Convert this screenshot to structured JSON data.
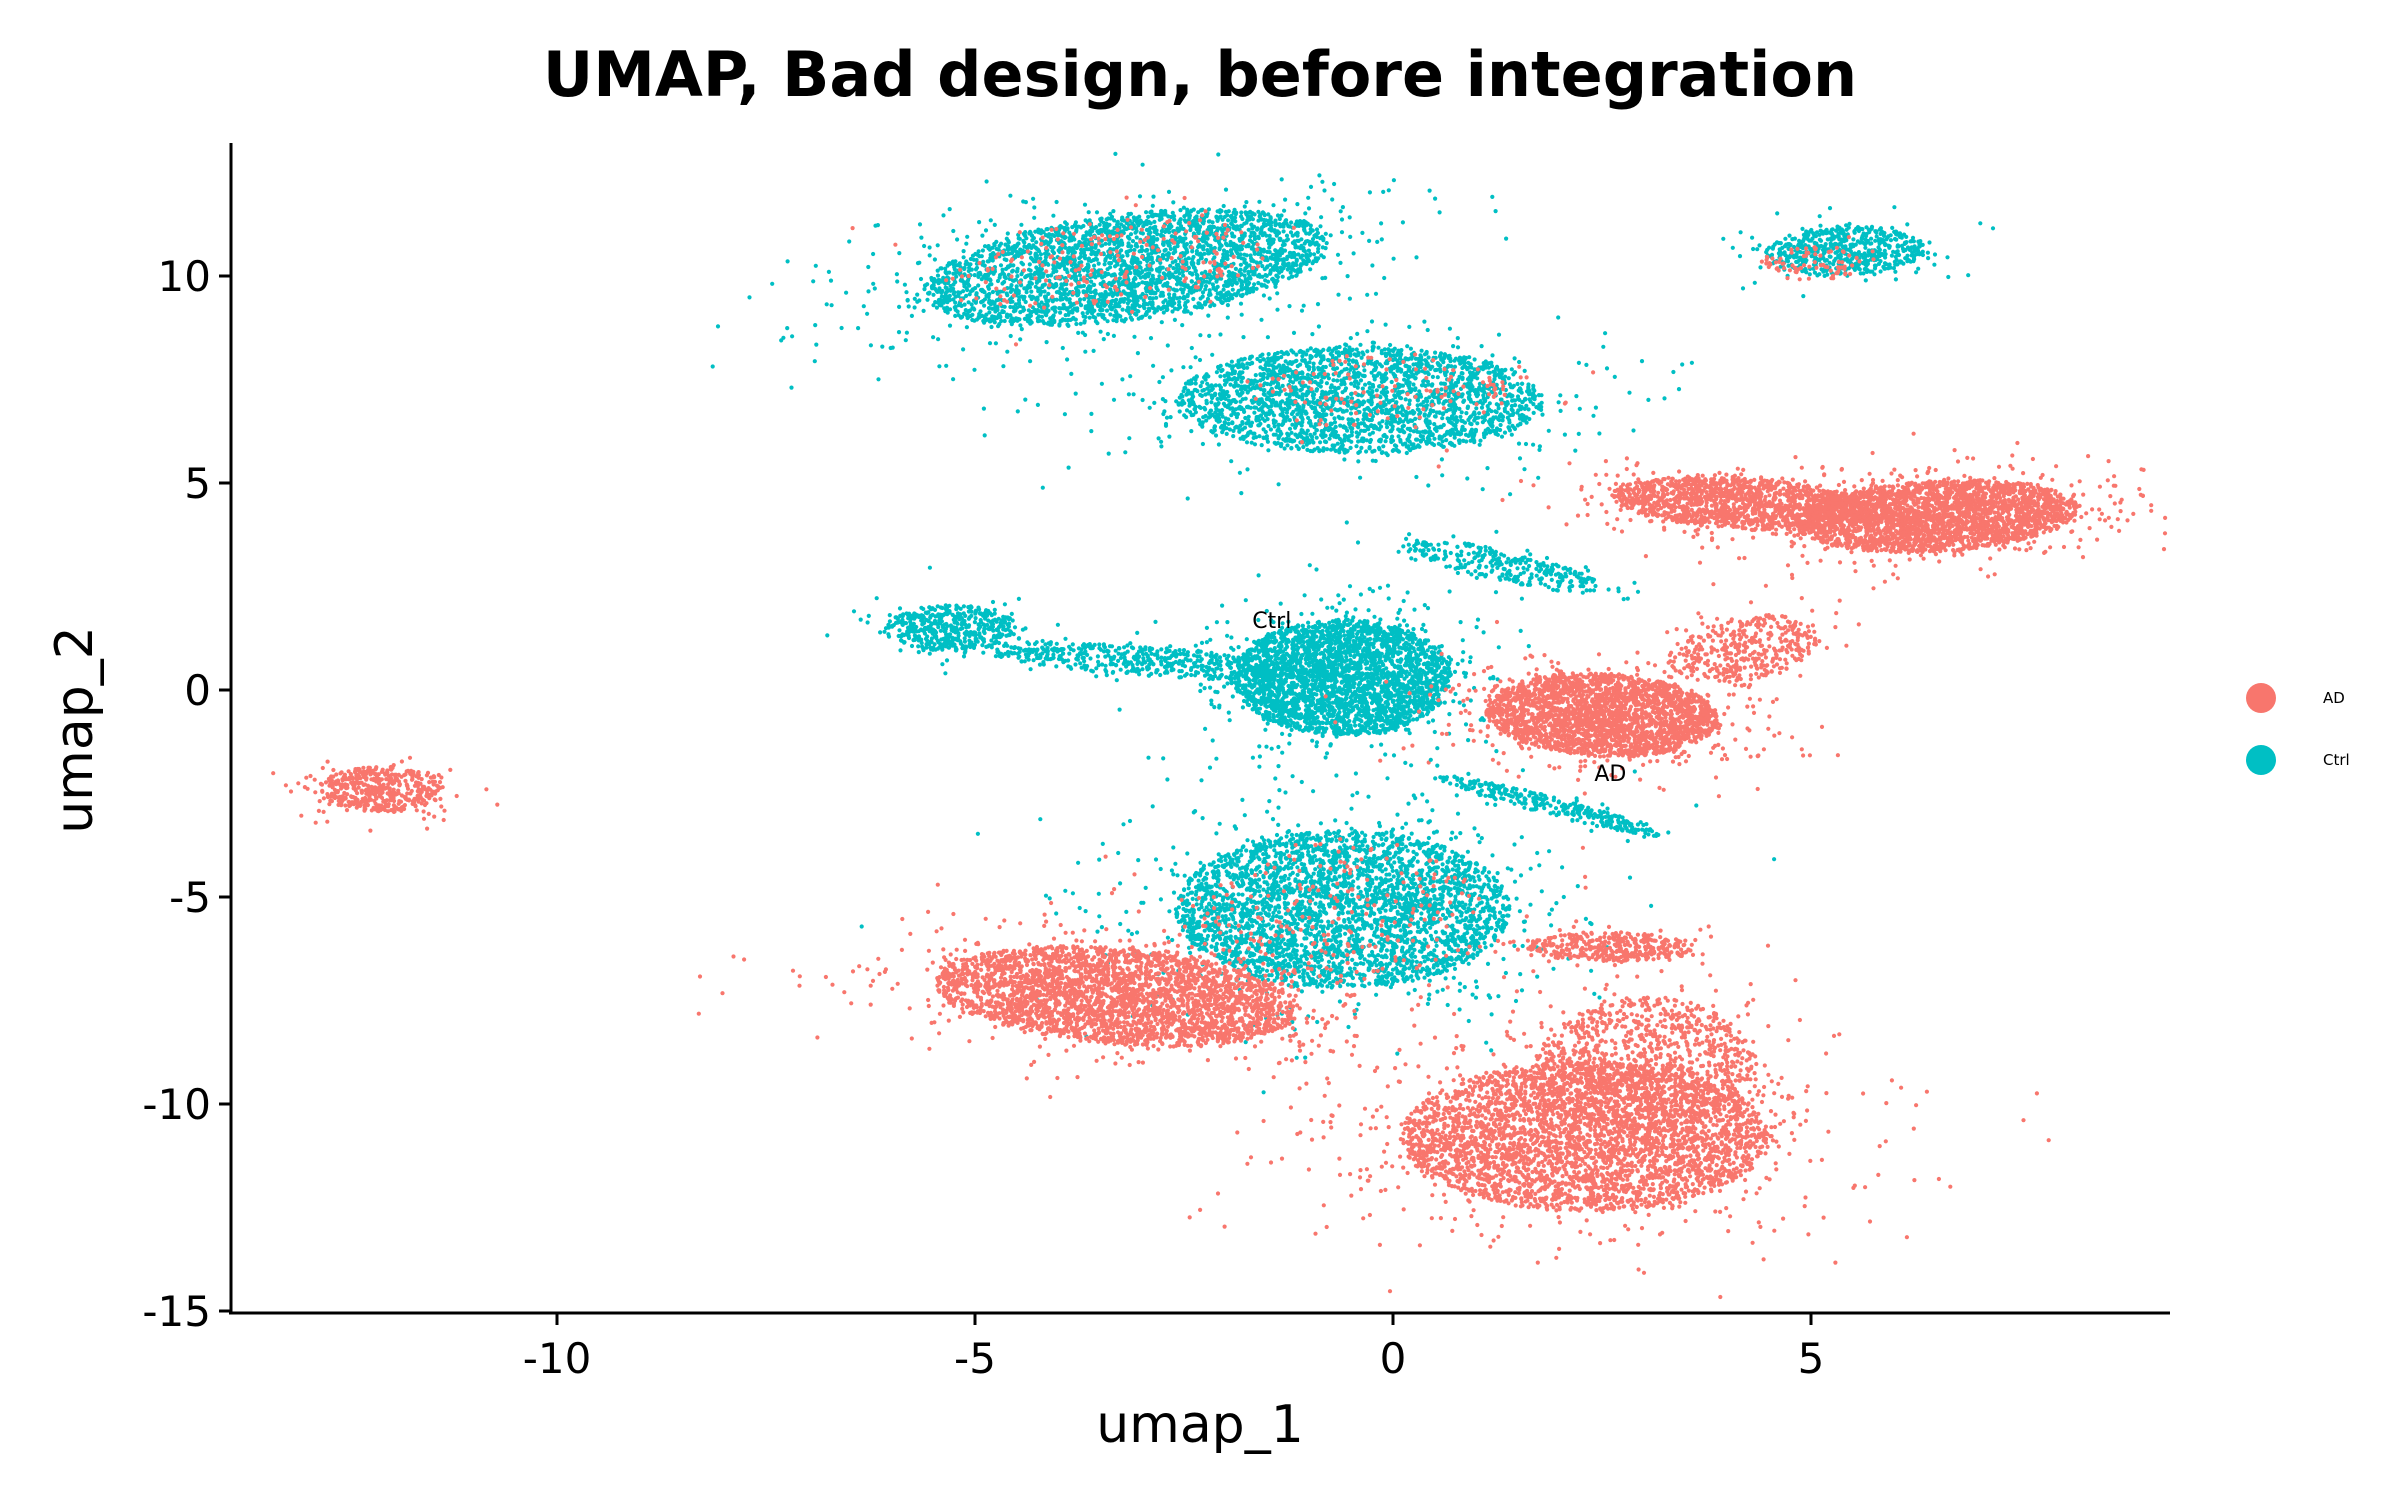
{
  "chart_data": {
    "type": "scatter",
    "title": "UMAP, Bad design, before integration",
    "xlabel": "umap_1",
    "ylabel": "umap_2",
    "xlim": [
      -14.2,
      9.3
    ],
    "ylim": [
      -15,
      13.2
    ],
    "xticks": [
      -10,
      -5,
      0,
      5
    ],
    "yticks": [
      10,
      5,
      0,
      -5,
      -10,
      -15
    ],
    "xtick_labels": [
      "-10",
      "-5",
      "0",
      "5"
    ],
    "ytick_labels": [
      "10",
      "5",
      "0",
      "-5",
      "-10",
      "-15"
    ],
    "grid": false,
    "legend_position": "right",
    "series": [
      {
        "name": "AD",
        "color": "#F8766D"
      },
      {
        "name": "Ctrl",
        "color": "#00BFC4"
      }
    ],
    "cluster_labels": [
      {
        "text": "Ctrl",
        "x": -1.45,
        "y": 1.5
      },
      {
        "text": "AD",
        "x": 2.6,
        "y": -2.2
      }
    ],
    "clusters": [
      {
        "series": 0,
        "cx": -12.1,
        "cy": -2.4,
        "rx": 0.75,
        "ry": 0.55,
        "angle": 0,
        "n": 500
      },
      {
        "series": 1,
        "cx": -3.2,
        "cy": 10.2,
        "rx": 2.5,
        "ry": 1.25,
        "angle": 18,
        "n": 3000
      },
      {
        "series": 0,
        "cx": -3.4,
        "cy": 10.3,
        "rx": 2.0,
        "ry": 1.0,
        "angle": 15,
        "n": 200
      },
      {
        "series": 1,
        "cx": -0.4,
        "cy": 7.0,
        "rx": 2.2,
        "ry": 1.3,
        "angle": 0,
        "n": 2400
      },
      {
        "series": 0,
        "cx": -0.2,
        "cy": 7.2,
        "rx": 1.6,
        "ry": 0.9,
        "angle": 0,
        "n": 120
      },
      {
        "series": 1,
        "cx": 5.4,
        "cy": 10.6,
        "rx": 0.95,
        "ry": 0.6,
        "angle": 8,
        "n": 600
      },
      {
        "series": 0,
        "cx": 5.0,
        "cy": 10.3,
        "rx": 0.6,
        "ry": 0.4,
        "angle": 0,
        "n": 80
      },
      {
        "series": 1,
        "cx": -5.3,
        "cy": 1.5,
        "rx": 0.8,
        "ry": 0.55,
        "angle": 0,
        "n": 500
      },
      {
        "series": 1,
        "cx": -3.0,
        "cy": 0.7,
        "rx": 1.9,
        "ry": 0.35,
        "angle": -8,
        "n": 500
      },
      {
        "series": 1,
        "cx": -0.6,
        "cy": 0.3,
        "rx": 1.3,
        "ry": 1.4,
        "angle": 0,
        "n": 3000
      },
      {
        "series": 1,
        "cx": 1.3,
        "cy": 3.0,
        "rx": 1.3,
        "ry": 0.35,
        "angle": -25,
        "n": 300
      },
      {
        "series": 0,
        "cx": 2.5,
        "cy": -0.6,
        "rx": 1.4,
        "ry": 1.0,
        "angle": -10,
        "n": 2600
      },
      {
        "series": 0,
        "cx": 6.5,
        "cy": 4.2,
        "rx": 1.7,
        "ry": 0.85,
        "angle": 8,
        "n": 2800
      },
      {
        "series": 0,
        "cx": 4.2,
        "cy": 4.5,
        "rx": 1.6,
        "ry": 0.6,
        "angle": -8,
        "n": 1500
      },
      {
        "series": 0,
        "cx": 4.2,
        "cy": 1.0,
        "rx": 1.0,
        "ry": 0.7,
        "angle": 35,
        "n": 400
      },
      {
        "series": 1,
        "cx": 1.9,
        "cy": -2.8,
        "rx": 1.5,
        "ry": 0.2,
        "angle": -28,
        "n": 300
      },
      {
        "series": 1,
        "cx": -0.6,
        "cy": -5.3,
        "rx": 2.0,
        "ry": 1.9,
        "angle": 0,
        "n": 3400
      },
      {
        "series": 0,
        "cx": -0.6,
        "cy": -5.3,
        "rx": 1.8,
        "ry": 1.7,
        "angle": 0,
        "n": 200
      },
      {
        "series": 0,
        "cx": -3.3,
        "cy": -7.4,
        "rx": 2.2,
        "ry": 1.15,
        "angle": -12,
        "n": 3200
      },
      {
        "series": 0,
        "cx": 2.3,
        "cy": -10.8,
        "rx": 2.2,
        "ry": 1.8,
        "angle": 0,
        "n": 3800
      },
      {
        "series": 0,
        "cx": 3.0,
        "cy": -9.0,
        "rx": 1.3,
        "ry": 1.6,
        "angle": 0,
        "n": 1000
      },
      {
        "series": 0,
        "cx": 2.6,
        "cy": -6.2,
        "rx": 1.0,
        "ry": 0.35,
        "angle": 0,
        "n": 400
      }
    ]
  }
}
